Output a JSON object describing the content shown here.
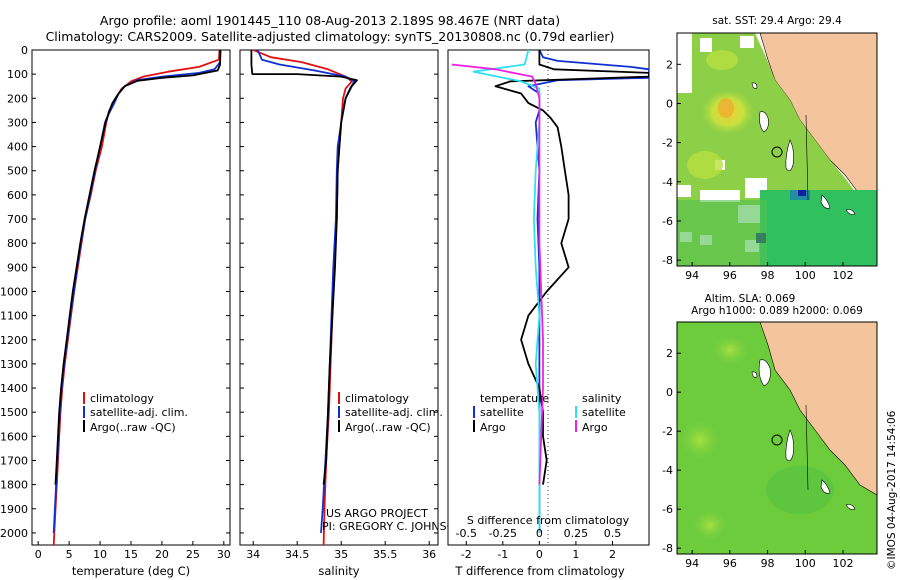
{
  "header": {
    "line1": "Argo profile: aoml 1901445_110 08-Aug-2013 2.189S 98.467E (NRT data)",
    "line2": "Climatology: CARS2009. Satellite-adjusted climatology: synTS_20130808.nc (0.79d earlier)"
  },
  "colors": {
    "climatology": "#e01010",
    "satellite": "#1030d0",
    "argo": "#000000",
    "salinity_sat": "#30e0f0",
    "salinity_argo": "#f020e0",
    "land": "#f4c49c"
  },
  "chart_data": [
    {
      "type": "line",
      "panel": "temperature",
      "xlabel": "temperature (deg C)",
      "xlim": [
        -1,
        31
      ],
      "ylim": [
        2050,
        0
      ],
      "xticks": [
        0,
        5,
        10,
        15,
        20,
        25,
        30
      ],
      "yticks": [
        0,
        100,
        200,
        300,
        400,
        500,
        600,
        700,
        800,
        900,
        1000,
        1100,
        1200,
        1300,
        1400,
        1500,
        1600,
        1700,
        1800,
        1900,
        2000
      ],
      "legend": [
        "climatology",
        "satellite-adj. clim.",
        "Argo(..raw -QC)"
      ],
      "series": [
        {
          "name": "climatology",
          "color": "#e01010",
          "points": [
            [
              29.3,
              0
            ],
            [
              29.2,
              40
            ],
            [
              26,
              70
            ],
            [
              21,
              90
            ],
            [
              17,
              110
            ],
            [
              15,
              130
            ],
            [
              13.5,
              160
            ],
            [
              12.5,
              200
            ],
            [
              11.5,
              250
            ],
            [
              11,
              300
            ],
            [
              10.3,
              400
            ],
            [
              9.3,
              500
            ],
            [
              8.5,
              600
            ],
            [
              7.6,
              700
            ],
            [
              7,
              800
            ],
            [
              6.4,
              900
            ],
            [
              5.8,
              1000
            ],
            [
              5.3,
              1100
            ],
            [
              4.8,
              1200
            ],
            [
              4.3,
              1300
            ],
            [
              3.9,
              1400
            ],
            [
              3.6,
              1500
            ],
            [
              3.4,
              1600
            ],
            [
              3.2,
              1700
            ],
            [
              3,
              1800
            ],
            [
              2.8,
              1900
            ],
            [
              2.6,
              2000
            ],
            [
              2.5,
              2050
            ]
          ]
        },
        {
          "name": "satellite-adj. clim.",
          "color": "#1030d0",
          "points": [
            [
              29.5,
              0
            ],
            [
              29.4,
              50
            ],
            [
              28.5,
              80
            ],
            [
              26,
              95
            ],
            [
              20,
              110
            ],
            [
              16,
              125
            ],
            [
              14,
              150
            ],
            [
              13,
              180
            ],
            [
              12.3,
              220
            ],
            [
              11.5,
              260
            ],
            [
              10.8,
              300
            ],
            [
              10,
              400
            ],
            [
              9.2,
              500
            ],
            [
              8.4,
              600
            ],
            [
              7.6,
              700
            ],
            [
              6.9,
              800
            ],
            [
              6.3,
              900
            ],
            [
              5.8,
              1000
            ],
            [
              5.2,
              1100
            ],
            [
              4.7,
              1200
            ],
            [
              4.2,
              1300
            ],
            [
              3.8,
              1400
            ],
            [
              3.5,
              1500
            ],
            [
              3.3,
              1600
            ],
            [
              3.1,
              1700
            ],
            [
              2.9,
              1800
            ],
            [
              2.7,
              1900
            ],
            [
              2.5,
              2000
            ]
          ]
        },
        {
          "name": "Argo(..raw -QC)",
          "color": "#000000",
          "points": [
            [
              29.4,
              0
            ],
            [
              29.4,
              60
            ],
            [
              29,
              85
            ],
            [
              25,
              105
            ],
            [
              20,
              115
            ],
            [
              16,
              128
            ],
            [
              14,
              150
            ],
            [
              13,
              180
            ],
            [
              12,
              220
            ],
            [
              11.4,
              260
            ],
            [
              10.9,
              300
            ],
            [
              10,
              400
            ],
            [
              9.1,
              500
            ],
            [
              8.3,
              600
            ],
            [
              7.5,
              700
            ],
            [
              6.8,
              800
            ],
            [
              6.2,
              900
            ],
            [
              5.6,
              1000
            ],
            [
              5.1,
              1100
            ],
            [
              4.6,
              1200
            ],
            [
              4.1,
              1300
            ],
            [
              3.7,
              1400
            ],
            [
              3.4,
              1500
            ],
            [
              3.2,
              1600
            ],
            [
              3,
              1700
            ],
            [
              2.8,
              1800
            ]
          ]
        }
      ]
    },
    {
      "type": "line",
      "panel": "salinity",
      "xlabel": "salinity",
      "xlim": [
        33.85,
        36.1
      ],
      "ylim": [
        2050,
        0
      ],
      "xticks": [
        34,
        34.5,
        35,
        35.5,
        36
      ],
      "legend": [
        "climatology",
        "satellite-adj. clim.",
        "Argo(..raw -QC)"
      ],
      "annotation": [
        "US ARGO PROJECT",
        "PI: GREGORY C. JOHNSON"
      ],
      "series": [
        {
          "name": "climatology",
          "color": "#e01010",
          "points": [
            [
              34.0,
              0
            ],
            [
              34.2,
              30
            ],
            [
              34.55,
              50
            ],
            [
              34.85,
              80
            ],
            [
              35.05,
              110
            ],
            [
              35.12,
              130
            ],
            [
              35.05,
              160
            ],
            [
              35.02,
              200
            ],
            [
              35.0,
              300
            ],
            [
              34.98,
              400
            ],
            [
              34.96,
              500
            ],
            [
              34.95,
              700
            ],
            [
              34.92,
              900
            ],
            [
              34.9,
              1100
            ],
            [
              34.88,
              1300
            ],
            [
              34.86,
              1500
            ],
            [
              34.83,
              1700
            ],
            [
              34.81,
              1900
            ],
            [
              34.8,
              2050
            ]
          ]
        },
        {
          "name": "satellite-adj. clim.",
          "color": "#1030d0",
          "points": [
            [
              34.05,
              0
            ],
            [
              34.1,
              40
            ],
            [
              34.3,
              60
            ],
            [
              34.7,
              85
            ],
            [
              35.05,
              110
            ],
            [
              35.15,
              130
            ],
            [
              35.1,
              160
            ],
            [
              35.05,
              200
            ],
            [
              35.0,
              300
            ],
            [
              34.96,
              400
            ],
            [
              34.95,
              500
            ],
            [
              34.94,
              700
            ],
            [
              34.91,
              900
            ],
            [
              34.89,
              1100
            ],
            [
              34.87,
              1300
            ],
            [
              34.85,
              1500
            ],
            [
              34.82,
              1700
            ],
            [
              34.79,
              1900
            ],
            [
              34.77,
              2000
            ]
          ]
        },
        {
          "name": "Argo(..raw -QC)",
          "color": "#000000",
          "points": [
            [
              33.98,
              0
            ],
            [
              33.98,
              60
            ],
            [
              33.99,
              100
            ],
            [
              34.5,
              100
            ],
            [
              35.0,
              110
            ],
            [
              35.18,
              125
            ],
            [
              35.12,
              150
            ],
            [
              35.05,
              200
            ],
            [
              35.0,
              300
            ],
            [
              34.98,
              400
            ],
            [
              34.96,
              500
            ],
            [
              34.95,
              700
            ],
            [
              34.93,
              900
            ],
            [
              34.9,
              1100
            ],
            [
              34.87,
              1300
            ],
            [
              34.85,
              1500
            ],
            [
              34.83,
              1700
            ],
            [
              34.8,
              1800
            ]
          ]
        }
      ]
    },
    {
      "type": "line",
      "panel": "difference",
      "xlabel": "T difference from climatology",
      "xlabel2": "S difference from climatology",
      "xlim": [
        -2.5,
        3
      ],
      "ylim": [
        2050,
        0
      ],
      "xticks": [
        -2,
        -1,
        0,
        1,
        2
      ],
      "xticks2": [
        "-0.5",
        "-0.25",
        "0",
        "0.25",
        "0.5"
      ],
      "legend_left": [
        "temperature",
        "satellite",
        "Argo"
      ],
      "legend_right": [
        "salinity",
        "satellite",
        "Argo"
      ],
      "series": [
        {
          "name": "temperature satellite",
          "color": "#1030d0",
          "points": [
            [
              0,
              0
            ],
            [
              0.1,
              30
            ],
            [
              0.5,
              45
            ],
            [
              2.5,
              70
            ],
            [
              3,
              80
            ],
            [
              3,
              115
            ],
            [
              0.5,
              125
            ],
            [
              -0.3,
              150
            ],
            [
              0,
              180
            ],
            [
              0,
              250
            ],
            [
              -0.1,
              300
            ],
            [
              0,
              500
            ],
            [
              -0.05,
              700
            ],
            [
              0,
              900
            ],
            [
              0,
              1100
            ],
            [
              0,
              1300
            ],
            [
              0,
              1500
            ],
            [
              0,
              1700
            ],
            [
              0,
              1900
            ],
            [
              0,
              2000
            ]
          ]
        },
        {
          "name": "temperature Argo",
          "color": "#000000",
          "points": [
            [
              0,
              0
            ],
            [
              0,
              60
            ],
            [
              0.4,
              80
            ],
            [
              3,
              95
            ],
            [
              3,
              110
            ],
            [
              -0.8,
              130
            ],
            [
              -1.2,
              150
            ],
            [
              -0.5,
              180
            ],
            [
              -0.3,
              220
            ],
            [
              0.1,
              250
            ],
            [
              0.3,
              280
            ],
            [
              0.5,
              320
            ],
            [
              0.6,
              400
            ],
            [
              0.7,
              500
            ],
            [
              0.8,
              600
            ],
            [
              0.8,
              700
            ],
            [
              0.6,
              800
            ],
            [
              0.8,
              900
            ],
            [
              0.2,
              1000
            ],
            [
              -0.3,
              1100
            ],
            [
              -0.5,
              1200
            ],
            [
              -0.3,
              1300
            ],
            [
              0,
              1400
            ],
            [
              0.1,
              1500
            ],
            [
              0.1,
              1600
            ],
            [
              0.2,
              1700
            ],
            [
              0.1,
              1800
            ]
          ]
        },
        {
          "name": "salinity satellite",
          "color": "#30e0f0",
          "points": [
            [
              -0.3,
              0
            ],
            [
              -0.4,
              60
            ],
            [
              -1.8,
              90
            ],
            [
              -0.5,
              130
            ],
            [
              0,
              160
            ],
            [
              0,
              300
            ],
            [
              -0.1,
              500
            ],
            [
              -0.15,
              700
            ],
            [
              -0.1,
              900
            ],
            [
              0,
              1100
            ],
            [
              -0.1,
              1300
            ],
            [
              0,
              1500
            ],
            [
              0,
              1700
            ],
            [
              0,
              1900
            ],
            [
              0,
              2000
            ]
          ]
        },
        {
          "name": "salinity Argo",
          "color": "#f020e0",
          "points": [
            [
              -2.4,
              60
            ],
            [
              -1.2,
              80
            ],
            [
              -0.2,
              110
            ],
            [
              -0.1,
              140
            ],
            [
              0,
              200
            ],
            [
              0,
              400
            ],
            [
              0,
              600
            ],
            [
              0,
              800
            ],
            [
              0.05,
              1000
            ],
            [
              0.1,
              1200
            ],
            [
              0.1,
              1400
            ],
            [
              0.05,
              1600
            ],
            [
              0,
              1800
            ]
          ]
        }
      ]
    },
    {
      "type": "heatmap",
      "panel": "sst-map",
      "title": "sat. SST: 29.4  Argo: 29.4",
      "xticks": [
        94,
        96,
        98,
        100,
        102
      ],
      "yticks": [
        2,
        0,
        -2,
        -4,
        -6,
        -8
      ],
      "xlim": [
        93.2,
        103.8
      ],
      "ylim": [
        -8.3,
        3.6
      ],
      "float_position": [
        98.467,
        -2.189
      ]
    },
    {
      "type": "heatmap",
      "panel": "sla-map",
      "title": "Altim. SLA: 0.069",
      "subtitle": "Argo h1000: 0.089 h2000: 0.069",
      "xticks": [
        94,
        96,
        98,
        100,
        102
      ],
      "yticks": [
        2,
        0,
        -2,
        -4,
        -6,
        -8
      ],
      "xlim": [
        93.2,
        103.8
      ],
      "ylim": [
        -8.3,
        3.6
      ],
      "float_position": [
        98.467,
        -2.189
      ]
    }
  ],
  "footer": {
    "stamp": "©IMOS 04-Aug-2017 14:54:06"
  }
}
